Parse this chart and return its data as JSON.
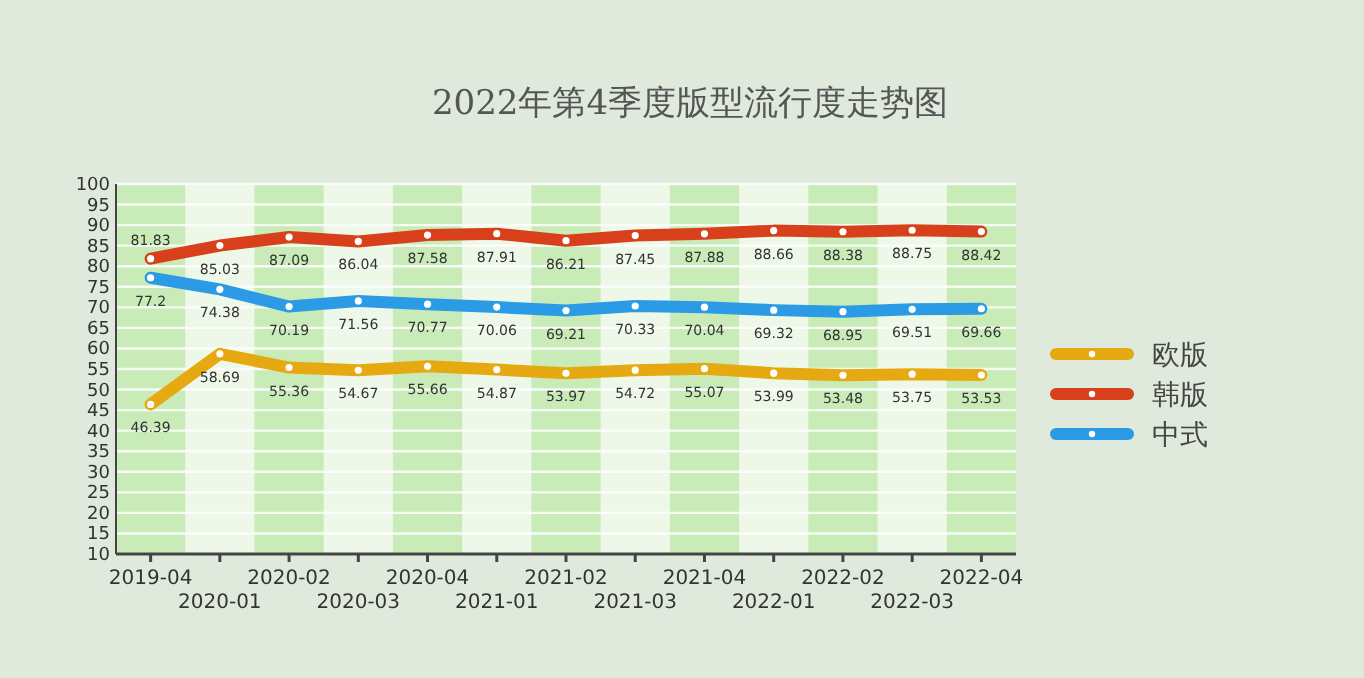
{
  "chart_data": {
    "type": "line",
    "title": "2022年第4季度版型流行度走势图",
    "categories": [
      "2019-04",
      "2020-01",
      "2020-02",
      "2020-03",
      "2020-04",
      "2021-01",
      "2021-02",
      "2021-03",
      "2021-04",
      "2022-01",
      "2022-02",
      "2022-03",
      "2022-04"
    ],
    "series": [
      {
        "name": "欧版",
        "color": "#e6a912",
        "values": [
          46.39,
          58.69,
          55.36,
          54.67,
          55.66,
          54.87,
          53.97,
          54.72,
          55.07,
          53.99,
          53.48,
          53.75,
          53.53
        ]
      },
      {
        "name": "韩版",
        "color": "#d8401c",
        "values": [
          81.83,
          85.03,
          87.09,
          86.04,
          87.58,
          87.91,
          86.21,
          87.45,
          87.88,
          88.66,
          88.38,
          88.75,
          88.42
        ]
      },
      {
        "name": "中式",
        "color": "#2b9be6",
        "values": [
          77.2,
          74.38,
          70.19,
          71.56,
          70.77,
          70.06,
          69.21,
          70.33,
          70.04,
          69.32,
          68.95,
          69.51,
          69.66
        ]
      }
    ],
    "ylim": [
      10,
      100
    ],
    "yticks": [
      10,
      15,
      20,
      25,
      30,
      35,
      40,
      45,
      50,
      55,
      60,
      65,
      70,
      75,
      80,
      85,
      90,
      95,
      100
    ],
    "bands": [
      {
        "axis": "x",
        "from": "2019-04",
        "to": "2019-04",
        "color": "#c8ebb8"
      },
      {
        "axis": "x",
        "from": "2020-02",
        "to": "2020-02",
        "color": "#c8ebb8"
      },
      {
        "axis": "x",
        "from": "2020-04",
        "to": "2020-04",
        "color": "#c8ebb8"
      },
      {
        "axis": "x",
        "from": "2021-02",
        "to": "2021-02",
        "color": "#c8ebb8"
      },
      {
        "axis": "x",
        "from": "2021-04",
        "to": "2021-04",
        "color": "#c8ebb8"
      },
      {
        "axis": "x",
        "from": "2022-02",
        "to": "2022-02",
        "color": "#c8ebb8"
      },
      {
        "axis": "x",
        "from": "2022-04",
        "to": "2022-04",
        "color": "#c8ebb8"
      }
    ],
    "grid": "y",
    "data_labels": true,
    "legend": "right",
    "marker": "circle",
    "line_style": "solid"
  }
}
